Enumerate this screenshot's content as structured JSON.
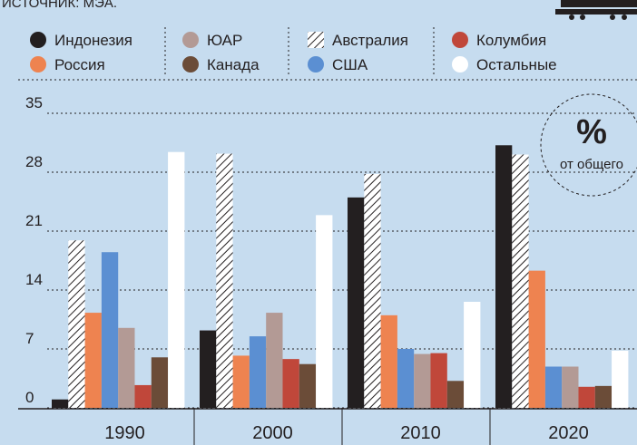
{
  "chart_data": {
    "type": "bar",
    "source": "ИСТОЧНИК: МЭА.",
    "annotation": {
      "symbol": "%",
      "text": "от общего"
    },
    "categories": [
      "1990",
      "2000",
      "2010",
      "2020"
    ],
    "series": [
      {
        "name": "Индонезия",
        "color": "#231f20",
        "values": [
          1,
          9.2,
          25,
          31.2
        ]
      },
      {
        "name": "Австралия",
        "color": "#231f20",
        "hatch": true,
        "values": [
          19.9,
          30.2,
          27.8,
          30.1
        ]
      },
      {
        "name": "Россия",
        "color": "#ee8350",
        "values": [
          11.3,
          6.2,
          11,
          16.3
        ]
      },
      {
        "name": "США",
        "color": "#5b8fd2",
        "values": [
          18.5,
          8.5,
          7,
          4.9
        ]
      },
      {
        "name": "ЮАР",
        "color": "#b39a95",
        "values": [
          9.5,
          11.3,
          6.4,
          4.9
        ]
      },
      {
        "name": "Колумбия",
        "color": "#c0473a",
        "values": [
          2.7,
          5.8,
          6.5,
          2.5
        ]
      },
      {
        "name": "Канада",
        "color": "#6b4c38",
        "values": [
          6,
          5.2,
          3.2,
          2.6
        ]
      },
      {
        "name": "Остальные",
        "color": "#ffffff",
        "values": [
          30.4,
          22.9,
          12.6,
          6.8
        ]
      }
    ],
    "ylim": [
      0,
      35
    ],
    "yticks": [
      0,
      7,
      14,
      21,
      28,
      35
    ],
    "grid": true
  }
}
